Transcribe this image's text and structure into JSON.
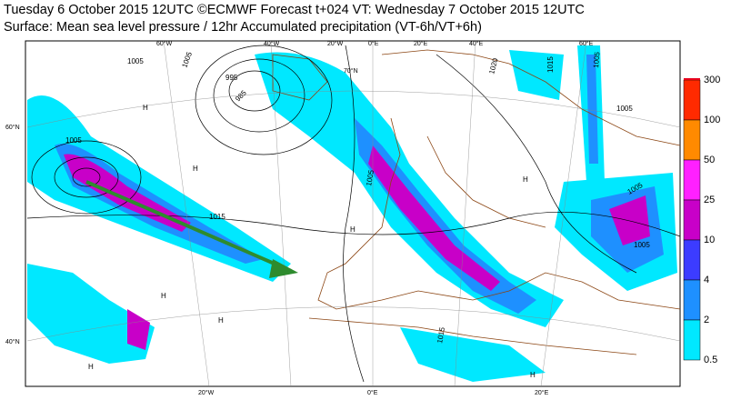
{
  "header": {
    "line1": "Tuesday 6 October 2015 12UTC ©ECMWF Forecast t+024 VT: Wednesday 7 October 2015 12UTC",
    "line2": "Surface: Mean sea level pressure / 12hr Accumulated precipitation (VT-6h/VT+6h)"
  },
  "legend": {
    "levels": [
      300,
      100,
      50,
      25,
      10,
      4,
      2,
      0.5
    ],
    "colors": [
      "#e8001c",
      "#ff2a00",
      "#ff8a00",
      "#ff20ff",
      "#c800c8",
      "#3c3cff",
      "#1e90ff",
      "#00e8ff"
    ]
  },
  "graticule": [
    "60°W",
    "40°W",
    "20°W",
    "0°E",
    "20°E",
    "40°E",
    "60°E",
    "70°N",
    "60°N",
    "40°N",
    "20°W",
    "0°E",
    "20°E"
  ],
  "isobars": [
    "1005",
    "1005",
    "995",
    "985",
    "1005",
    "1015",
    "1005",
    "1020",
    "1015",
    "1005",
    "1005",
    "1005",
    "1005",
    "1015"
  ],
  "pressure_centers": [
    "H",
    "H",
    "H",
    "H",
    "H",
    "H",
    "H",
    "H"
  ]
}
